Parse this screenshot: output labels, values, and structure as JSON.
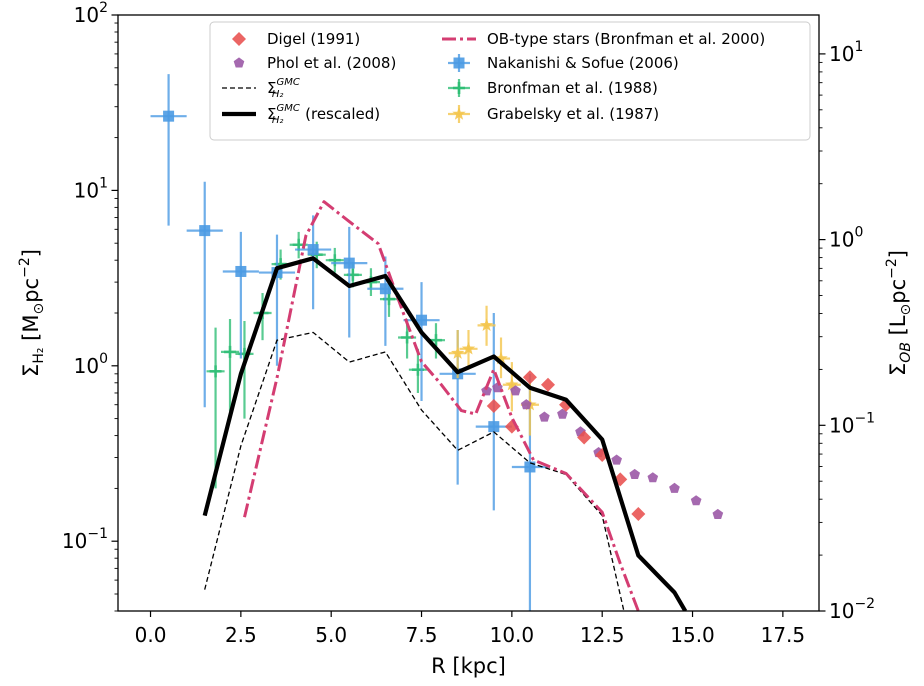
{
  "chart_data": {
    "type": "scatter",
    "x_axis": {
      "label": "R [kpc]",
      "range": [
        -0.9,
        18.5
      ],
      "ticks": [
        0,
        2.5,
        5,
        7.5,
        10,
        12.5,
        15,
        17.5
      ],
      "tick_labels": [
        "0.0",
        "2.5",
        "5.0",
        "7.5",
        "10.0",
        "12.5",
        "15.0",
        "17.5"
      ]
    },
    "y_left": {
      "label_main": "Σ",
      "label_sub": "H₂",
      "label_units": "[M",
      "label_units_sub": "⊙",
      "label_units_rest": "pc",
      "label_units_sup": "−2",
      "label_close": "]",
      "scale": "log",
      "range": [
        0.04,
        100
      ],
      "ticks": [
        {
          "value": 0.1,
          "base": "10",
          "exp": "−1"
        },
        {
          "value": 1,
          "base": "10",
          "exp": "0"
        },
        {
          "value": 10,
          "base": "10",
          "exp": "1"
        },
        {
          "value": 100,
          "base": "10",
          "exp": "2"
        }
      ]
    },
    "y_right": {
      "label_main": "Σ",
      "label_sub": "OB",
      "label_units": "[L",
      "label_units_sub": "⊙",
      "label_units_rest": "pc",
      "label_units_sup": "−2",
      "label_close": "]",
      "scale": "log",
      "range": [
        0.01,
        16.2
      ],
      "ticks": [
        {
          "value": 0.01,
          "base": "10",
          "exp": "−2"
        },
        {
          "value": 0.1,
          "base": "10",
          "exp": "−1"
        },
        {
          "value": 1,
          "base": "10",
          "exp": "0"
        },
        {
          "value": 10,
          "base": "10",
          "exp": "1"
        }
      ]
    },
    "series": [
      {
        "name": "Digel (1991)",
        "kind": "markers",
        "marker": "diamond",
        "color": "#e8504f",
        "axis": "left",
        "points": [
          [
            9.5,
            0.59
          ],
          [
            10,
            0.45
          ],
          [
            10.5,
            0.86
          ],
          [
            11,
            0.78
          ],
          [
            11.5,
            0.6
          ],
          [
            12,
            0.39
          ],
          [
            12.5,
            0.31
          ],
          [
            13,
            0.225
          ],
          [
            13.5,
            0.143
          ]
        ]
      },
      {
        "name": "Phol et al. (2008)",
        "kind": "markers",
        "marker": "pentagon",
        "color": "#9b59a6",
        "axis": "left",
        "points": [
          [
            9.3,
            0.72
          ],
          [
            9.6,
            0.75
          ],
          [
            10.1,
            0.72
          ],
          [
            10.4,
            0.6
          ],
          [
            10.9,
            0.51
          ],
          [
            11.4,
            0.53
          ],
          [
            11.9,
            0.42
          ],
          [
            12.4,
            0.32
          ],
          [
            12.9,
            0.29
          ],
          [
            13.4,
            0.24
          ],
          [
            13.9,
            0.23
          ],
          [
            14.5,
            0.2
          ],
          [
            15.1,
            0.17
          ],
          [
            15.7,
            0.142
          ]
        ]
      },
      {
        "name": "Σ_H₂^GMC",
        "kind": "line",
        "style": "dashed-thin",
        "color": "#000000",
        "axis": "left",
        "points": [
          [
            1.5,
            0.053
          ],
          [
            2.5,
            0.35
          ],
          [
            3.5,
            1.4
          ],
          [
            4.5,
            1.55
          ],
          [
            5.5,
            1.05
          ],
          [
            6.5,
            1.2
          ],
          [
            7.5,
            0.56
          ],
          [
            8.5,
            0.33
          ],
          [
            9.5,
            0.42
          ],
          [
            10.5,
            0.28
          ],
          [
            11.5,
            0.24
          ],
          [
            12.5,
            0.14
          ],
          [
            13.1,
            0.04
          ]
        ]
      },
      {
        "name": "Σ_H₂^GMC (rescaled)",
        "kind": "line",
        "style": "solid-thick",
        "color": "#000000",
        "axis": "left",
        "points": [
          [
            1.5,
            0.14
          ],
          [
            2.5,
            0.9
          ],
          [
            3.5,
            3.6
          ],
          [
            4.5,
            4.1
          ],
          [
            5.5,
            2.85
          ],
          [
            6.5,
            3.25
          ],
          [
            7.5,
            1.55
          ],
          [
            8.5,
            0.92
          ],
          [
            9.5,
            1.13
          ],
          [
            10.5,
            0.75
          ],
          [
            11.5,
            0.64
          ],
          [
            12.5,
            0.38
          ],
          [
            13.5,
            0.083
          ],
          [
            14.5,
            0.051
          ],
          [
            14.8,
            0.04
          ]
        ]
      },
      {
        "name": "OB-type stars (Bronfman et al. 2000)",
        "kind": "line",
        "style": "dashdot",
        "color": "#d43d72",
        "axis": "right",
        "points": [
          [
            2.6,
            0.032
          ],
          [
            3.5,
            0.18
          ],
          [
            4.3,
            1.05
          ],
          [
            4.8,
            1.6
          ],
          [
            5.5,
            1.25
          ],
          [
            6.3,
            0.95
          ],
          [
            7.0,
            0.4
          ],
          [
            7.5,
            0.22
          ],
          [
            8.0,
            0.17
          ],
          [
            8.6,
            0.12
          ],
          [
            9.0,
            0.115
          ],
          [
            9.5,
            0.2
          ],
          [
            10.0,
            0.11
          ],
          [
            10.6,
            0.065
          ],
          [
            11.5,
            0.055
          ],
          [
            12.5,
            0.034
          ],
          [
            13.0,
            0.018
          ],
          [
            13.5,
            0.01
          ]
        ]
      },
      {
        "name": "Nakanishi & Sofue (2006)",
        "kind": "errorbar",
        "marker": "square",
        "color": "#4a9ae3",
        "axis": "left",
        "points": [
          {
            "x": 0.5,
            "y": 26.5,
            "xerr": 0.5,
            "ylo": 6.3,
            "yhi": 46
          },
          {
            "x": 1.5,
            "y": 5.9,
            "xerr": 0.5,
            "ylo": 0.58,
            "yhi": 11.2
          },
          {
            "x": 2.5,
            "y": 3.45,
            "xerr": 0.5,
            "ylo": 1.1,
            "yhi": 5.8
          },
          {
            "x": 3.5,
            "y": 3.4,
            "xerr": 0.5,
            "ylo": 1.0,
            "yhi": 5.6
          },
          {
            "x": 4.5,
            "y": 4.6,
            "xerr": 0.5,
            "ylo": 2.1,
            "yhi": 7.2
          },
          {
            "x": 5.5,
            "y": 3.85,
            "xerr": 0.5,
            "ylo": 1.45,
            "yhi": 6.2
          },
          {
            "x": 6.5,
            "y": 2.75,
            "xerr": 0.5,
            "ylo": 1.3,
            "yhi": 4.2
          },
          {
            "x": 7.5,
            "y": 1.82,
            "xerr": 0.5,
            "ylo": 0.63,
            "yhi": 3.0
          },
          {
            "x": 8.5,
            "y": 0.9,
            "xerr": 0.5,
            "ylo": 0.21,
            "yhi": 1.6
          },
          {
            "x": 9.5,
            "y": 0.45,
            "xerr": 0.5,
            "ylo": 0.15,
            "yhi": 2.0
          },
          {
            "x": 10.5,
            "y": 0.265,
            "xerr": 0.5,
            "ylo": 0.04,
            "yhi": 0.9
          }
        ]
      },
      {
        "name": "Bronfman et al. (1988)",
        "kind": "errorbar",
        "marker": "plus",
        "color": "#2fbe75",
        "axis": "left",
        "points": [
          {
            "x": 1.8,
            "y": 0.93,
            "xerr": 0.25,
            "ylo": 0.2,
            "yhi": 1.65
          },
          {
            "x": 2.2,
            "y": 1.2,
            "xerr": 0.25,
            "ylo": 0.55,
            "yhi": 1.85
          },
          {
            "x": 2.6,
            "y": 1.17,
            "xerr": 0.25,
            "ylo": 0.5,
            "yhi": 1.8
          },
          {
            "x": 3.1,
            "y": 2.0,
            "xerr": 0.25,
            "ylo": 1.4,
            "yhi": 2.6
          },
          {
            "x": 3.6,
            "y": 3.8,
            "xerr": 0.25,
            "ylo": 3.1,
            "yhi": 4.6
          },
          {
            "x": 4.1,
            "y": 4.9,
            "xerr": 0.25,
            "ylo": 4.1,
            "yhi": 5.8
          },
          {
            "x": 4.6,
            "y": 4.3,
            "xerr": 0.25,
            "ylo": 3.6,
            "yhi": 5.1
          },
          {
            "x": 5.1,
            "y": 4.0,
            "xerr": 0.25,
            "ylo": 3.4,
            "yhi": 4.7
          },
          {
            "x": 5.6,
            "y": 3.3,
            "xerr": 0.25,
            "ylo": 2.8,
            "yhi": 3.9
          },
          {
            "x": 6.1,
            "y": 3.0,
            "xerr": 0.25,
            "ylo": 2.5,
            "yhi": 3.6
          },
          {
            "x": 6.6,
            "y": 2.4,
            "xerr": 0.25,
            "ylo": 1.9,
            "yhi": 3.0
          },
          {
            "x": 7.1,
            "y": 1.45,
            "xerr": 0.25,
            "ylo": 1.1,
            "yhi": 1.85
          },
          {
            "x": 7.4,
            "y": 0.95,
            "xerr": 0.25,
            "ylo": 0.7,
            "yhi": 1.25
          },
          {
            "x": 7.9,
            "y": 1.4,
            "xerr": 0.25,
            "ylo": 1.1,
            "yhi": 1.75
          }
        ]
      },
      {
        "name": "Grabelsky et al. (1987)",
        "kind": "errorbar",
        "marker": "star",
        "color": "#f4c54c",
        "axis": "left",
        "points": [
          {
            "x": 8.5,
            "y": 1.18,
            "xerr": 0.25,
            "ylo": 0.85,
            "yhi": 1.6
          },
          {
            "x": 8.8,
            "y": 1.25,
            "xerr": 0.25,
            "ylo": 0.95,
            "yhi": 1.6
          },
          {
            "x": 9.3,
            "y": 1.7,
            "xerr": 0.25,
            "ylo": 1.3,
            "yhi": 2.2
          },
          {
            "x": 9.7,
            "y": 1.1,
            "xerr": 0.25,
            "ylo": 0.85,
            "yhi": 1.45
          },
          {
            "x": 10.0,
            "y": 0.78,
            "xerr": 0.25,
            "ylo": 0.55,
            "yhi": 1.05
          },
          {
            "x": 10.5,
            "y": 0.6,
            "xerr": 0.25,
            "ylo": 0.4,
            "yhi": 0.8
          }
        ]
      }
    ],
    "legend": {
      "placement": "top",
      "columns": [
        [
          "Digel (1991)",
          "Phol et al. (2008)",
          "Σ_H₂^GMC",
          "Σ_H₂^GMC (rescaled)"
        ],
        [
          "OB-type stars (Bronfman et al. 2000)",
          "Nakanishi & Sofue (2006)",
          "Bronfman et al. (1988)",
          "Grabelsky et al. (1987)"
        ]
      ],
      "entries": [
        {
          "series": 0,
          "label": "Digel (1991)"
        },
        {
          "series": 1,
          "label": "Phol et al. (2008)"
        },
        {
          "series": 2,
          "base": "Σ",
          "sub": "H₂",
          "sup": "GMC",
          "rest": ""
        },
        {
          "series": 3,
          "base": "Σ",
          "sub": "H₂",
          "sup": "GMC",
          "rest": " (rescaled)"
        },
        {
          "series": 4,
          "label": "OB-type stars (Bronfman et al. 2000)"
        },
        {
          "series": 5,
          "label": "Nakanishi & Sofue (2006)"
        },
        {
          "series": 6,
          "label": "Bronfman et al. (1988)"
        },
        {
          "series": 7,
          "label": "Grabelsky et al. (1987)"
        }
      ]
    },
    "grid": false
  }
}
